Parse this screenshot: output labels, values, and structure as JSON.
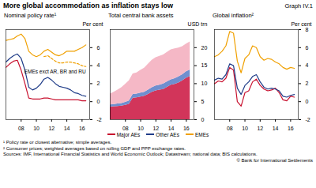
{
  "title": "More global accommodation as inflation stays low",
  "label": "Graph IV.1",
  "chart_data": [
    {
      "type": "line",
      "title": "Nominal policy rate¹",
      "y_label": "Per cent",
      "legend": "bottom",
      "x": [
        2006,
        2006.5,
        2007,
        2007.5,
        2008,
        2008.5,
        2009,
        2009.5,
        2010,
        2010.5,
        2011,
        2011.5,
        2012,
        2012.5,
        2013,
        2013.5,
        2014,
        2014.5,
        2015,
        2015.5,
        2016,
        2016.5
      ],
      "xlim": [
        2006,
        2017
      ],
      "xticks": [
        {
          "value": 2008,
          "label": "08"
        },
        {
          "value": 2010,
          "label": "10"
        },
        {
          "value": 2012,
          "label": "12"
        },
        {
          "value": 2014,
          "label": "14"
        },
        {
          "value": 2016,
          "label": "16"
        }
      ],
      "ylim": [
        -2,
        8
      ],
      "yticks": [
        -2,
        0,
        2,
        4,
        6
      ],
      "series": [
        {
          "name": "Major AEs",
          "color": "#c8102e",
          "values": [
            3.8,
            4.2,
            4.5,
            4.6,
            3.5,
            2.0,
            0.4,
            0.3,
            0.3,
            0.3,
            0.4,
            0.4,
            0.3,
            0.2,
            0.2,
            0.2,
            0.2,
            0.2,
            0.2,
            0.2,
            0.1,
            0.1
          ]
        },
        {
          "name": "Other AEs",
          "color": "#1f3c88",
          "values": [
            4.4,
            4.8,
            5.1,
            5.3,
            4.8,
            3.5,
            1.6,
            1.3,
            1.5,
            1.9,
            2.5,
            2.7,
            2.4,
            2.0,
            1.7,
            1.6,
            1.5,
            1.3,
            1.0,
            0.9,
            0.7,
            0.6
          ]
        },
        {
          "name": "EMEs",
          "color": "#f0a000",
          "values": [
            6.8,
            6.9,
            7.0,
            7.3,
            7.5,
            7.0,
            5.6,
            5.2,
            5.0,
            5.2,
            5.6,
            5.8,
            5.5,
            5.2,
            5.1,
            5.3,
            5.6,
            5.6,
            5.6,
            5.8,
            6.0,
            6.3
          ]
        },
        {
          "name": "EMEs exct AR, BR and RU",
          "color": "#f0a000",
          "line_style": "dashed",
          "values": [
            null,
            null,
            null,
            null,
            null,
            null,
            null,
            null,
            null,
            null,
            5.0,
            5.1,
            4.8,
            4.5,
            4.3,
            4.3,
            4.4,
            4.4,
            4.3,
            4.2,
            4.0,
            3.9
          ]
        }
      ]
    },
    {
      "type": "area",
      "title": "Total central bank assets",
      "y_label": "USD trn",
      "stacked": true,
      "legend": "bottom",
      "x": [
        2006,
        2006.5,
        2007,
        2007.5,
        2008,
        2008.5,
        2009,
        2009.5,
        2010,
        2010.5,
        2011,
        2011.5,
        2012,
        2012.5,
        2013,
        2013.5,
        2014,
        2014.5,
        2015,
        2015.5,
        2016,
        2016.5
      ],
      "xlim": [
        2006,
        2017
      ],
      "xticks": [
        {
          "value": 2008,
          "label": "08"
        },
        {
          "value": 2010,
          "label": "10"
        },
        {
          "value": 2012,
          "label": "12"
        },
        {
          "value": 2014,
          "label": "14"
        },
        {
          "value": 2016,
          "label": "16"
        }
      ],
      "ylim": [
        0,
        25
      ],
      "yticks": [
        0,
        5,
        10,
        15,
        20
      ],
      "series": [
        {
          "name": "Major AEs",
          "color": "#d2355a",
          "values": [
            3.5,
            3.6,
            3.7,
            3.8,
            4.0,
            4.3,
            6.0,
            6.1,
            6.3,
            6.5,
            7.0,
            7.6,
            8.0,
            8.2,
            8.4,
            9.0,
            9.6,
            9.8,
            10.2,
            10.8,
            11.5,
            12.0
          ]
        },
        {
          "name": "Other AEs",
          "color": "#6f8fcf",
          "values": [
            0.6,
            0.6,
            0.7,
            0.7,
            0.8,
            0.9,
            1.0,
            1.0,
            1.1,
            1.1,
            1.2,
            1.3,
            1.4,
            1.4,
            1.5,
            1.5,
            1.5,
            1.6,
            1.7,
            1.7,
            1.8,
            1.8
          ]
        },
        {
          "name": "EMEs",
          "color": "#f5b8c6",
          "values": [
            3.0,
            3.4,
            3.8,
            4.4,
            5.0,
            5.6,
            5.7,
            5.9,
            6.3,
            6.7,
            7.2,
            7.6,
            7.8,
            8.0,
            8.1,
            8.2,
            8.3,
            8.3,
            8.0,
            7.8,
            7.7,
            7.8
          ]
        }
      ]
    },
    {
      "type": "line",
      "title": "Global inflation²",
      "y_label": "Per cent",
      "legend": "bottom",
      "x": [
        2006,
        2006.5,
        2007,
        2007.5,
        2008,
        2008.5,
        2009,
        2009.5,
        2010,
        2010.5,
        2011,
        2011.5,
        2012,
        2012.5,
        2013,
        2013.5,
        2014,
        2014.5,
        2015,
        2015.5,
        2016,
        2016.5
      ],
      "xlim": [
        2006,
        2017
      ],
      "xticks": [
        {
          "value": 2008,
          "label": "08"
        },
        {
          "value": 2010,
          "label": "10"
        },
        {
          "value": 2012,
          "label": "12"
        },
        {
          "value": 2014,
          "label": "14"
        },
        {
          "value": 2016,
          "label": "16"
        }
      ],
      "ylim": [
        -2,
        8
      ],
      "yticks": [
        -2,
        0,
        2,
        4,
        6,
        8
      ],
      "series": [
        {
          "name": "Major AEs",
          "color": "#c8102e",
          "values": [
            2.0,
            2.3,
            2.2,
            2.6,
            3.8,
            3.5,
            0.0,
            -0.5,
            1.0,
            1.2,
            2.2,
            2.5,
            1.8,
            1.4,
            1.2,
            1.3,
            1.5,
            1.0,
            0.2,
            0.1,
            0.6,
            0.5
          ]
        },
        {
          "name": "Other AEs",
          "color": "#1f3c88",
          "values": [
            2.4,
            2.6,
            2.5,
            3.0,
            4.2,
            4.0,
            1.5,
            0.8,
            1.8,
            2.2,
            2.8,
            3.0,
            2.2,
            1.6,
            1.4,
            1.5,
            1.4,
            1.2,
            0.6,
            0.5,
            0.7,
            0.8
          ]
        },
        {
          "name": "EMEs",
          "color": "#f0a000",
          "values": [
            5.0,
            5.2,
            5.6,
            6.2,
            7.8,
            7.6,
            4.5,
            3.2,
            4.8,
            5.2,
            6.2,
            6.0,
            5.0,
            4.6,
            4.8,
            4.7,
            4.4,
            4.2,
            3.8,
            3.6,
            3.8,
            3.7
          ]
        }
      ]
    }
  ],
  "footnotes": [
    "¹ Policy rate or closest alternative; simple averages.",
    "² Consumer prices; weighted averages based on rolling GDP and PPP exchange rates."
  ],
  "sources": "Sources: IMF, International Financial Statistics and World Economic Outlook; Datastream; national data; BIS calculations.",
  "copyright": "© Bank for International Settlements"
}
